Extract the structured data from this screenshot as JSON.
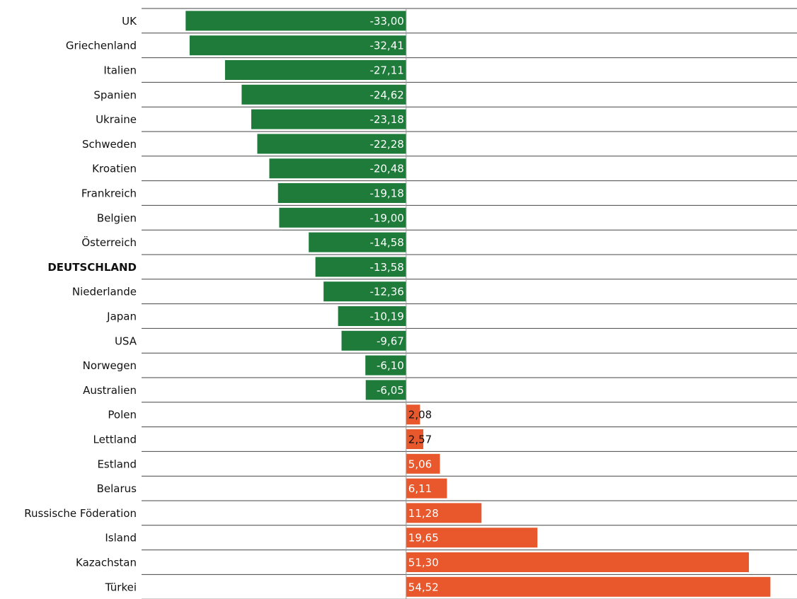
{
  "chart_data": {
    "type": "bar",
    "orientation": "horizontal",
    "categories": [
      "UK",
      "Griechenland",
      "Italien",
      "Spanien",
      "Ukraine",
      "Schweden",
      "Kroatien",
      "Frankreich",
      "Belgien",
      "Österreich",
      "DEUTSCHLAND",
      "Niederlande",
      "Japan",
      "USA",
      "Norwegen",
      "Australien",
      "Polen",
      "Lettland",
      "Estland",
      "Belarus",
      "Russische Föderation",
      "Island",
      "Kazachstan",
      "Türkei"
    ],
    "values": [
      -33.0,
      -32.41,
      -27.11,
      -24.62,
      -23.18,
      -22.28,
      -20.48,
      -19.18,
      -19.0,
      -14.58,
      -13.58,
      -12.36,
      -10.19,
      -9.67,
      -6.1,
      -6.05,
      2.08,
      2.57,
      5.06,
      6.11,
      11.28,
      19.65,
      51.3,
      54.52
    ],
    "value_labels": [
      "-33,00",
      "-32,41",
      "-27,11",
      "-24,62",
      "-23,18",
      "-22,28",
      "-20,48",
      "-19,18",
      "-19,00",
      "-14,58",
      "-13,58",
      "-12,36",
      "-10,19",
      "-9,67",
      "-6,10",
      "-6,05",
      "2,08",
      "2,57",
      "5,06",
      "6,11",
      "11,28",
      "19,65",
      "51,30",
      "54,52"
    ],
    "color_negative": "#1e7b3a",
    "color_positive": "#e8582c",
    "highlight_index": 10,
    "xlim": [
      -39.6,
      58.5
    ]
  }
}
